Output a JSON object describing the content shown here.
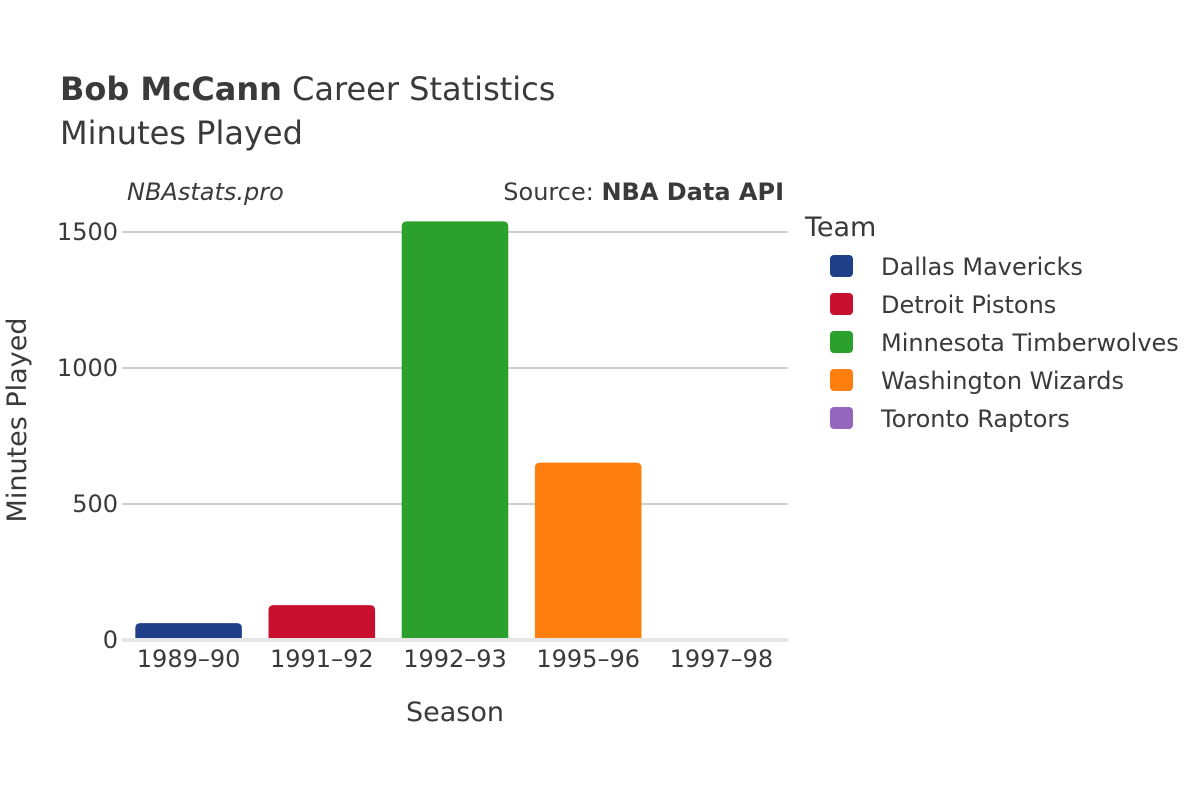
{
  "header": {
    "player_name": "Bob McCann",
    "title_rest": " Career Statistics",
    "subtitle": "Minutes Played"
  },
  "credit": "NBAstats.pro",
  "source": {
    "prefix": "Source: ",
    "name": "NBA Data API"
  },
  "chart_data": {
    "type": "bar",
    "title": "Bob McCann Career Statistics",
    "subtitle": "Minutes Played",
    "xlabel": "Season",
    "ylabel": "Minutes Played",
    "categories": [
      "1989–90",
      "1991–92",
      "1992–93",
      "1995–96",
      "1997–98"
    ],
    "values": [
      62,
      128,
      1539,
      652,
      4
    ],
    "bar_teams": [
      "Dallas Mavericks",
      "Detroit Pistons",
      "Minnesota Timberwolves",
      "Washington Wizards",
      "Toronto Raptors"
    ],
    "ylim": [
      0,
      1600
    ],
    "yticks": [
      0,
      500,
      1000,
      1500
    ],
    "grid": true,
    "legend": {
      "title": "Team",
      "placement": "right",
      "entries": [
        {
          "name": "Dallas Mavericks",
          "color": "#1f4088"
        },
        {
          "name": "Detroit Pistons",
          "color": "#c8102e"
        },
        {
          "name": "Minnesota Timberwolves",
          "color": "#2ca02c"
        },
        {
          "name": "Washington Wizards",
          "color": "#ff7f0e"
        },
        {
          "name": "Toronto Raptors",
          "color": "#9467bd"
        }
      ]
    }
  }
}
